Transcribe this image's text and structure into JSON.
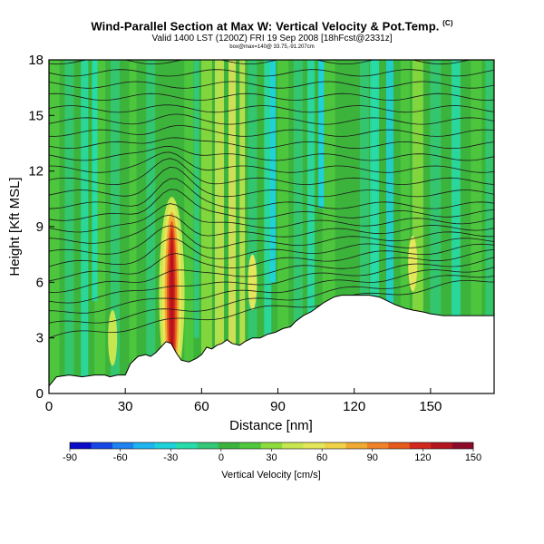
{
  "header": {
    "title": "Wind-Parallel Section at Max W: Vertical Velocity & Pot.Temp.",
    "copyright": "(C)",
    "valid": "Valid 1400 LST (1200Z) FRI 19 Sep 2008 [18hFcst@2331z]",
    "location": "box@max=140@ 33.75,-91.207cm"
  },
  "chart_data": {
    "type": "heatmap",
    "title": "Wind-Parallel Section at Max W: Vertical Velocity & Pot.Temp.",
    "xlabel": "Distance [nm]",
    "ylabel": "Height [Kft MSL]",
    "xlim": [
      0,
      175
    ],
    "ylim": [
      0,
      18
    ],
    "xticks": [
      0,
      30,
      60,
      90,
      120,
      150
    ],
    "yticks": [
      0,
      3,
      6,
      9,
      12,
      15,
      18
    ],
    "colorbar": {
      "label": "Vertical Velocity [cm/s]",
      "ticks": [
        -90,
        -60,
        -30,
        0,
        30,
        60,
        90,
        120,
        150
      ],
      "colors": [
        "#0a0ac8",
        "#1646e6",
        "#1e82f0",
        "#1eb4f0",
        "#1ed2dc",
        "#28dcaa",
        "#32c878",
        "#3cb43c",
        "#50c83c",
        "#8cdc3c",
        "#c8e650",
        "#e6e65a",
        "#f0d246",
        "#f0aa32",
        "#f08228",
        "#e65a1e",
        "#d2281e",
        "#b4141e",
        "#8c0a28"
      ]
    },
    "terrain": [
      [
        0,
        0.4
      ],
      [
        3,
        0.9
      ],
      [
        8,
        1.0
      ],
      [
        13,
        0.9
      ],
      [
        18,
        1.0
      ],
      [
        22,
        1.0
      ],
      [
        24,
        0.9
      ],
      [
        27,
        1.0
      ],
      [
        30,
        1.0
      ],
      [
        32,
        1.6
      ],
      [
        35,
        2.0
      ],
      [
        38,
        2.1
      ],
      [
        40,
        2.0
      ],
      [
        42,
        2.2
      ],
      [
        44,
        2.5
      ],
      [
        46,
        2.8
      ],
      [
        48,
        2.7
      ],
      [
        50,
        2.2
      ],
      [
        52,
        1.8
      ],
      [
        55,
        1.7
      ],
      [
        58,
        1.9
      ],
      [
        60,
        2.1
      ],
      [
        62,
        2.5
      ],
      [
        64,
        2.4
      ],
      [
        66,
        2.6
      ],
      [
        68,
        2.7
      ],
      [
        70,
        2.9
      ],
      [
        72,
        2.7
      ],
      [
        75,
        2.6
      ],
      [
        77,
        2.8
      ],
      [
        80,
        3.0
      ],
      [
        83,
        3.0
      ],
      [
        86,
        3.2
      ],
      [
        89,
        3.3
      ],
      [
        92,
        3.5
      ],
      [
        95,
        3.6
      ],
      [
        97,
        3.9
      ],
      [
        100,
        4.2
      ],
      [
        103,
        4.4
      ],
      [
        105,
        4.6
      ],
      [
        108,
        4.9
      ],
      [
        112,
        5.2
      ],
      [
        115,
        5.3
      ],
      [
        118,
        5.3
      ],
      [
        122,
        5.3
      ],
      [
        126,
        5.3
      ],
      [
        130,
        5.2
      ],
      [
        133,
        5.0
      ],
      [
        136,
        4.8
      ],
      [
        140,
        4.6
      ],
      [
        143,
        4.5
      ],
      [
        147,
        4.4
      ],
      [
        150,
        4.3
      ],
      [
        155,
        4.2
      ],
      [
        160,
        4.2
      ],
      [
        165,
        4.2
      ],
      [
        170,
        4.2
      ],
      [
        175,
        4.2
      ]
    ]
  }
}
